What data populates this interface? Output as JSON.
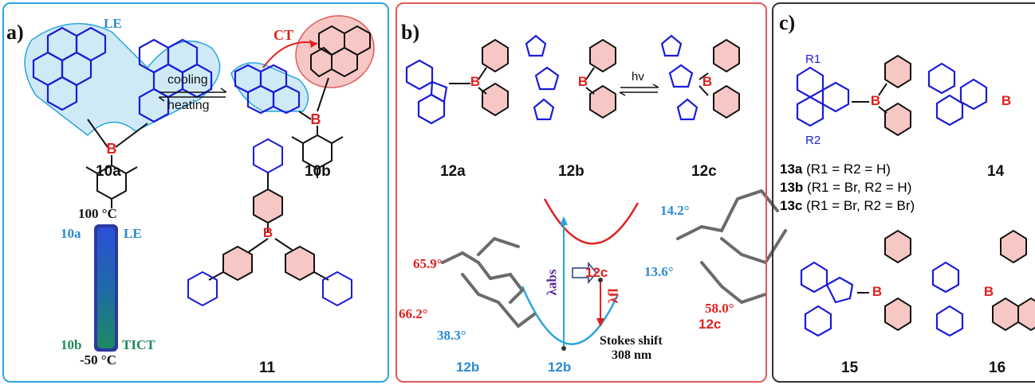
{
  "panel_a": {
    "label": "a)",
    "le_label": "LE",
    "ct_label": "CT",
    "cooling": "cooling",
    "heating": "heating",
    "compound_10a": "10a",
    "compound_10b": "10b",
    "compound_11": "11",
    "temp_high": "100 °C",
    "temp_low": "-50 °C",
    "vial_top_left": "10a",
    "vial_top_right": "LE",
    "vial_bottom_left": "10b",
    "vial_bottom_right": "TICT"
  },
  "panel_b": {
    "label": "b)",
    "compound_12a": "12a",
    "compound_12b": "12b",
    "compound_12c": "12c",
    "hv": "hv",
    "angle_659": "65.9°",
    "angle_662": "66.2°",
    "angle_383": "38.3°",
    "angle_142": "14.2°",
    "angle_136": "13.6°",
    "angle_580": "58.0°",
    "lambda_abs": "λabs",
    "lambda_fl": "λfl",
    "stokes_shift": "Stokes shift",
    "stokes_value": "308 nm",
    "state_12c_curve": "12c",
    "state_12c_struct": "12c",
    "state_12b_struct": "12b",
    "state_12b_curve": "12b"
  },
  "panel_c": {
    "label": "c)",
    "compound_13a": "13a",
    "sub_13a": "(R1 = R2 = H)",
    "compound_13b": "13b",
    "sub_13b": "(R1 = Br, R2 = H)",
    "compound_13c": "13c",
    "sub_13c": "(R1 = Br, R2 = Br)",
    "compound_14": "14",
    "compound_15": "15",
    "compound_16": "16",
    "r1": "R1",
    "r2": "R2"
  }
}
